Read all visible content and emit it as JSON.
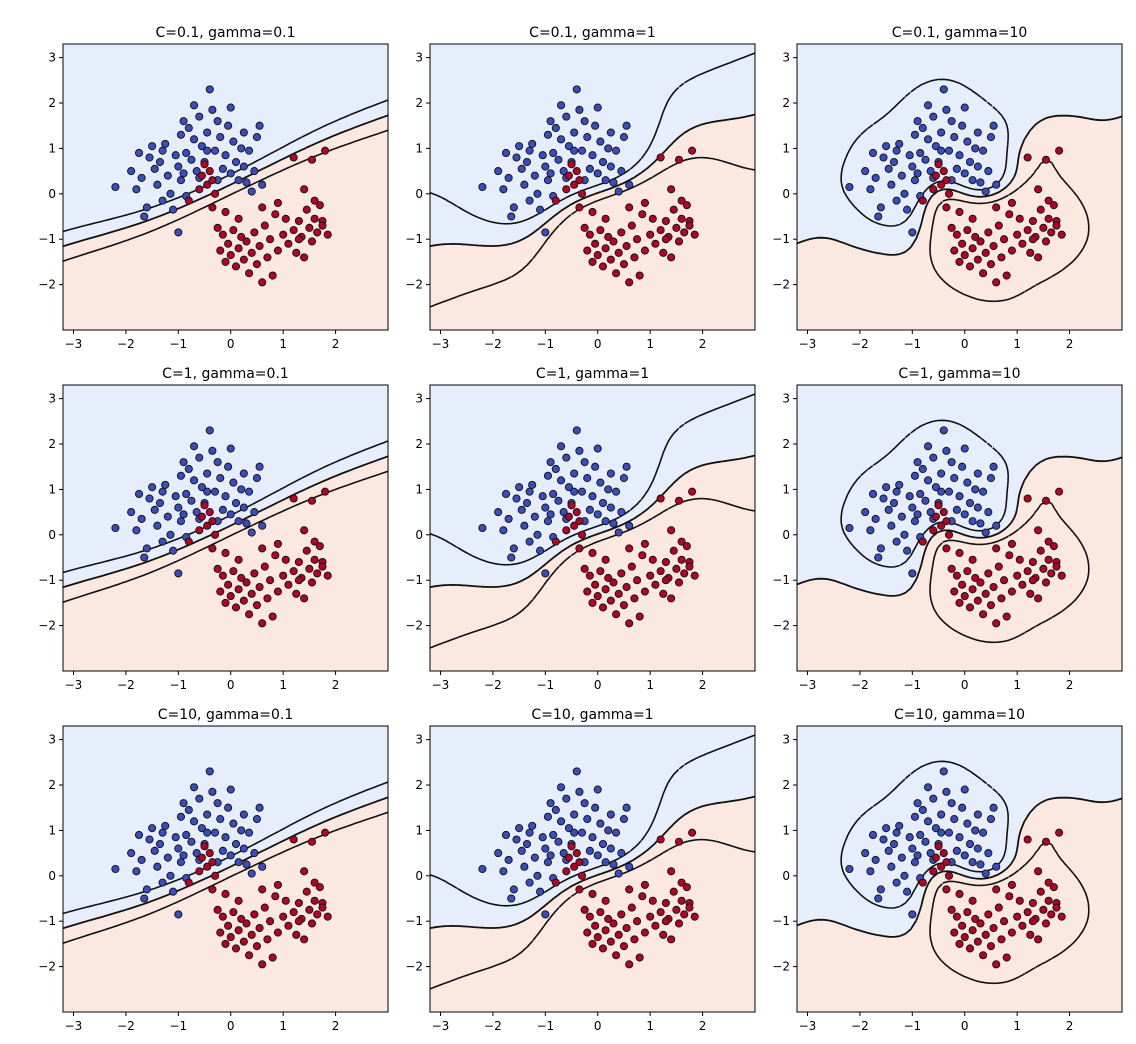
{
  "chart_data": [
    {
      "type": "scatter",
      "title": "C=0.1, gamma=0.1",
      "C": 0.1,
      "gamma": 0.1,
      "xlim": [
        -3.2,
        3.0
      ],
      "ylim": [
        -3.0,
        3.3
      ]
    },
    {
      "type": "scatter",
      "title": "C=0.1, gamma=1",
      "C": 0.1,
      "gamma": 1,
      "xlim": [
        -3.2,
        3.0
      ],
      "ylim": [
        -3.0,
        3.3
      ]
    },
    {
      "type": "scatter",
      "title": "C=0.1, gamma=10",
      "C": 0.1,
      "gamma": 10,
      "xlim": [
        -3.2,
        3.0
      ],
      "ylim": [
        -3.0,
        3.3
      ]
    },
    {
      "type": "scatter",
      "title": "C=1, gamma=0.1",
      "C": 1,
      "gamma": 0.1,
      "xlim": [
        -3.2,
        3.0
      ],
      "ylim": [
        -3.0,
        3.3
      ]
    },
    {
      "type": "scatter",
      "title": "C=1, gamma=1",
      "C": 1,
      "gamma": 1,
      "xlim": [
        -3.2,
        3.0
      ],
      "ylim": [
        -3.0,
        3.3
      ]
    },
    {
      "type": "scatter",
      "title": "C=1, gamma=10",
      "C": 1,
      "gamma": 10,
      "xlim": [
        -3.2,
        3.0
      ],
      "ylim": [
        -3.0,
        3.3
      ]
    },
    {
      "type": "scatter",
      "title": "C=10, gamma=0.1",
      "C": 10,
      "gamma": 0.1,
      "xlim": [
        -3.2,
        3.0
      ],
      "ylim": [
        -3.0,
        3.3
      ]
    },
    {
      "type": "scatter",
      "title": "C=10, gamma=1",
      "C": 10,
      "gamma": 1,
      "xlim": [
        -3.2,
        3.0
      ],
      "ylim": [
        -3.0,
        3.3
      ]
    },
    {
      "type": "scatter",
      "title": "C=10, gamma=10",
      "C": 10,
      "gamma": 10,
      "xlim": [
        -3.2,
        3.0
      ],
      "ylim": [
        -3.0,
        3.3
      ]
    }
  ],
  "shared": {
    "x_ticks": [
      -3,
      -2,
      -1,
      0,
      1,
      2
    ],
    "x_tick_labels": [
      "−3",
      "−2",
      "−1",
      "0",
      "1",
      "2"
    ],
    "y_ticks": [
      -2,
      -1,
      0,
      1,
      2,
      3
    ],
    "y_tick_labels": [
      "−2",
      "−1",
      "0",
      "1",
      "2",
      "3"
    ],
    "colors": {
      "class_0": "#3b4cc0",
      "class_1": "#b40426",
      "region_0": "#e6eefc",
      "region_1": "#fbe9e1",
      "edge": "#111111",
      "contour": "#111111"
    },
    "series": {
      "class_0": [
        [
          -2.2,
          0.15
        ],
        [
          -1.9,
          0.5
        ],
        [
          -1.75,
          0.9
        ],
        [
          -1.7,
          0.35
        ],
        [
          -1.6,
          -0.3
        ],
        [
          -1.55,
          0.8
        ],
        [
          -1.5,
          1.05
        ],
        [
          -1.45,
          0.55
        ],
        [
          -1.4,
          0.2
        ],
        [
          -1.35,
          0.7
        ],
        [
          -1.3,
          0.95
        ],
        [
          -1.25,
          1.1
        ],
        [
          -1.2,
          0.4
        ],
        [
          -1.15,
          0.0
        ],
        [
          -1.1,
          -0.35
        ],
        [
          -1.05,
          0.85
        ],
        [
          -1.0,
          0.6
        ],
        [
          -0.95,
          1.3
        ],
        [
          -0.95,
          0.3
        ],
        [
          -0.9,
          1.6
        ],
        [
          -0.85,
          -0.05
        ],
        [
          -0.85,
          0.9
        ],
        [
          -0.8,
          1.45
        ],
        [
          -0.75,
          0.75
        ],
        [
          -0.7,
          1.95
        ],
        [
          -0.7,
          1.2
        ],
        [
          -0.65,
          0.5
        ],
        [
          -0.6,
          1.7
        ],
        [
          -0.55,
          1.05
        ],
        [
          -0.5,
          0.7
        ],
        [
          -0.45,
          1.35
        ],
        [
          -0.4,
          2.3
        ],
        [
          -0.35,
          1.85
        ],
        [
          -0.3,
          0.95
        ],
        [
          -0.25,
          1.6
        ],
        [
          -0.2,
          1.25
        ],
        [
          -0.15,
          0.55
        ],
        [
          -0.1,
          0.85
        ],
        [
          -0.05,
          1.5
        ],
        [
          0.0,
          1.9
        ],
        [
          0.05,
          1.15
        ],
        [
          0.1,
          0.7
        ],
        [
          0.15,
          0.3
        ],
        [
          0.2,
          1.0
        ],
        [
          0.25,
          0.6
        ],
        [
          0.3,
          0.25
        ],
        [
          0.35,
          0.95
        ],
        [
          0.4,
          0.05
        ],
        [
          0.45,
          0.5
        ],
        [
          0.5,
          1.25
        ],
        [
          -1.65,
          -0.5
        ],
        [
          -1.0,
          -0.85
        ],
        [
          -0.45,
          0.95
        ],
        [
          -0.25,
          0.3
        ],
        [
          0.55,
          1.5
        ],
        [
          0.6,
          0.2
        ],
        [
          -1.3,
          -0.15
        ],
        [
          -0.9,
          0.45
        ],
        [
          0.0,
          0.45
        ],
        [
          0.25,
          1.35
        ],
        [
          -0.6,
          0.35
        ],
        [
          -1.8,
          0.1
        ]
      ],
      "class_1": [
        [
          -0.8,
          -0.15
        ],
        [
          -0.6,
          0.1
        ],
        [
          -0.55,
          0.4
        ],
        [
          -0.5,
          0.65
        ],
        [
          -0.45,
          0.2
        ],
        [
          -0.4,
          0.5
        ],
        [
          -0.35,
          -0.3
        ],
        [
          -0.3,
          0.0
        ],
        [
          -0.25,
          -0.75
        ],
        [
          -0.2,
          -1.25
        ],
        [
          -0.15,
          -0.9
        ],
        [
          -0.1,
          -1.5
        ],
        [
          -0.05,
          -1.1
        ],
        [
          0.0,
          -1.35
        ],
        [
          0.05,
          -0.8
        ],
        [
          0.1,
          -1.6
        ],
        [
          0.15,
          -1.2
        ],
        [
          0.2,
          -0.95
        ],
        [
          0.25,
          -1.45
        ],
        [
          0.3,
          -1.05
        ],
        [
          0.35,
          -1.75
        ],
        [
          0.4,
          -1.3
        ],
        [
          0.45,
          -0.85
        ],
        [
          0.5,
          -1.55
        ],
        [
          0.55,
          -1.15
        ],
        [
          0.6,
          -1.95
        ],
        [
          0.65,
          -0.7
        ],
        [
          0.7,
          -1.4
        ],
        [
          0.75,
          -1.0
        ],
        [
          0.8,
          -1.8
        ],
        [
          0.85,
          -0.45
        ],
        [
          0.9,
          -1.25
        ],
        [
          1.0,
          -0.9
        ],
        [
          1.05,
          -0.55
        ],
        [
          1.1,
          -1.1
        ],
        [
          1.2,
          -0.8
        ],
        [
          1.25,
          -1.3
        ],
        [
          1.3,
          -0.6
        ],
        [
          1.35,
          -0.95
        ],
        [
          1.4,
          -1.4
        ],
        [
          1.45,
          -0.35
        ],
        [
          1.5,
          -0.75
        ],
        [
          1.55,
          -1.05
        ],
        [
          1.6,
          -0.55
        ],
        [
          1.65,
          -0.85
        ],
        [
          1.7,
          -0.25
        ],
        [
          1.75,
          -0.6
        ],
        [
          1.8,
          0.95
        ],
        [
          1.55,
          0.75
        ],
        [
          1.2,
          0.8
        ],
        [
          1.4,
          0.1
        ],
        [
          0.9,
          -0.2
        ],
        [
          -0.1,
          -0.4
        ],
        [
          0.6,
          -0.3
        ],
        [
          1.85,
          -0.9
        ],
        [
          1.75,
          -0.7
        ],
        [
          1.3,
          -1.0
        ],
        [
          0.15,
          -0.55
        ],
        [
          -0.35,
          0.3
        ],
        [
          1.6,
          -0.15
        ]
      ]
    }
  }
}
